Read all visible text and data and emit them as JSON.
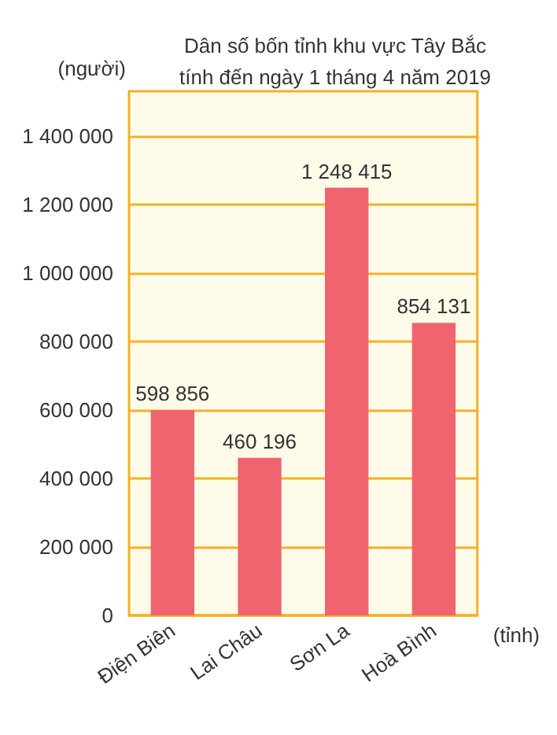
{
  "chart_data": {
    "type": "bar",
    "title": "Dân số bốn tỉnh khu vực Tây Bắc\ntính đến ngày 1 tháng 4 năm 2019",
    "ylabel": "(người)",
    "xlabel": "(tỉnh)",
    "categories": [
      "Điện Biên",
      "Lai Châu",
      "Sơn La",
      "Hoà Bình"
    ],
    "values": [
      598856,
      460196,
      1248415,
      854131
    ],
    "value_labels": [
      "598 856",
      "460 196",
      "1 248 415",
      "854 131"
    ],
    "color": "#f0646f",
    "ylim": [
      0,
      1530000
    ],
    "yticks": [
      0,
      {
        "value": 200000,
        "label": "200 000"
      },
      {
        "value": 400000,
        "label": "400 000"
      },
      {
        "value": 600000,
        "label": "600 000"
      },
      {
        "value": 800000,
        "label": "800 000"
      },
      {
        "value": 1000000,
        "label": "1 000 000"
      },
      {
        "value": 1200000,
        "label": "1 200 000"
      },
      {
        "value": 1400000,
        "label": "1 400 000"
      }
    ],
    "grid": "y"
  }
}
